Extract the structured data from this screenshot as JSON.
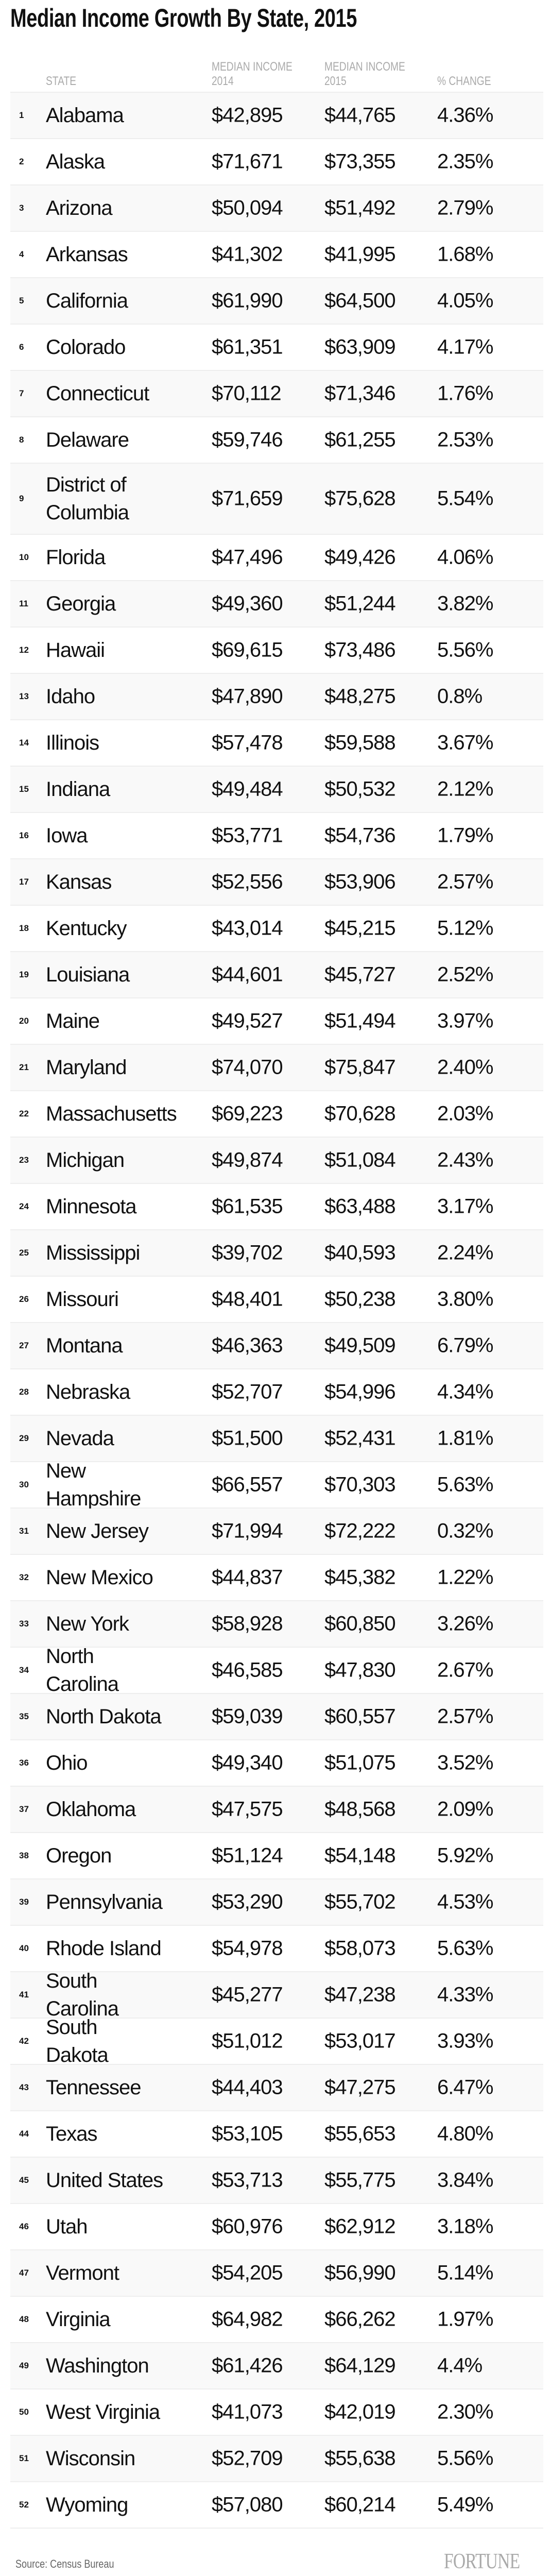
{
  "title": "Median Income Growth By State, 2015",
  "columns": {
    "state": "STATE",
    "income_2014_line1": "MEDIAN INCOME",
    "income_2014_line2": "2014",
    "income_2015_line1": "MEDIAN INCOME",
    "income_2015_line2": "2015",
    "change": "% CHANGE"
  },
  "rows": [
    {
      "rank": "1",
      "state": "Alabama",
      "y2014": "$42,895",
      "y2015": "$44,765",
      "change": "4.36%"
    },
    {
      "rank": "2",
      "state": "Alaska",
      "y2014": "$71,671",
      "y2015": "$73,355",
      "change": "2.35%"
    },
    {
      "rank": "3",
      "state": "Arizona",
      "y2014": "$50,094",
      "y2015": "$51,492",
      "change": "2.79%"
    },
    {
      "rank": "4",
      "state": "Arkansas",
      "y2014": "$41,302",
      "y2015": "$41,995",
      "change": "1.68%"
    },
    {
      "rank": "5",
      "state": "California",
      "y2014": "$61,990",
      "y2015": "$64,500",
      "change": "4.05%"
    },
    {
      "rank": "6",
      "state": "Colorado",
      "y2014": "$61,351",
      "y2015": "$63,909",
      "change": "4.17%"
    },
    {
      "rank": "7",
      "state": "Connecticut",
      "y2014": "$70,112",
      "y2015": "$71,346",
      "change": "1.76%"
    },
    {
      "rank": "8",
      "state": "Delaware",
      "y2014": "$59,746",
      "y2015": "$61,255",
      "change": "2.53%"
    },
    {
      "rank": "9",
      "state": "District of Columbia",
      "y2014": "$71,659",
      "y2015": "$75,628",
      "change": "5.54%"
    },
    {
      "rank": "10",
      "state": "Florida",
      "y2014": "$47,496",
      "y2015": "$49,426",
      "change": "4.06%"
    },
    {
      "rank": "11",
      "state": "Georgia",
      "y2014": "$49,360",
      "y2015": "$51,244",
      "change": "3.82%"
    },
    {
      "rank": "12",
      "state": "Hawaii",
      "y2014": "$69,615",
      "y2015": "$73,486",
      "change": "5.56%"
    },
    {
      "rank": "13",
      "state": "Idaho",
      "y2014": "$47,890",
      "y2015": "$48,275",
      "change": "0.8%"
    },
    {
      "rank": "14",
      "state": "Illinois",
      "y2014": "$57,478",
      "y2015": "$59,588",
      "change": "3.67%"
    },
    {
      "rank": "15",
      "state": "Indiana",
      "y2014": "$49,484",
      "y2015": "$50,532",
      "change": "2.12%"
    },
    {
      "rank": "16",
      "state": "Iowa",
      "y2014": "$53,771",
      "y2015": "$54,736",
      "change": "1.79%"
    },
    {
      "rank": "17",
      "state": "Kansas",
      "y2014": "$52,556",
      "y2015": "$53,906",
      "change": "2.57%"
    },
    {
      "rank": "18",
      "state": "Kentucky",
      "y2014": "$43,014",
      "y2015": "$45,215",
      "change": "5.12%"
    },
    {
      "rank": "19",
      "state": "Louisiana",
      "y2014": "$44,601",
      "y2015": "$45,727",
      "change": "2.52%"
    },
    {
      "rank": "20",
      "state": "Maine",
      "y2014": "$49,527",
      "y2015": "$51,494",
      "change": "3.97%"
    },
    {
      "rank": "21",
      "state": "Maryland",
      "y2014": "$74,070",
      "y2015": "$75,847",
      "change": "2.40%"
    },
    {
      "rank": "22",
      "state": "Massachusetts",
      "y2014": "$69,223",
      "y2015": "$70,628",
      "change": "2.03%"
    },
    {
      "rank": "23",
      "state": "Michigan",
      "y2014": "$49,874",
      "y2015": "$51,084",
      "change": "2.43%"
    },
    {
      "rank": "24",
      "state": "Minnesota",
      "y2014": "$61,535",
      "y2015": "$63,488",
      "change": "3.17%"
    },
    {
      "rank": "25",
      "state": "Mississippi",
      "y2014": "$39,702",
      "y2015": "$40,593",
      "change": "2.24%"
    },
    {
      "rank": "26",
      "state": "Missouri",
      "y2014": "$48,401",
      "y2015": "$50,238",
      "change": "3.80%"
    },
    {
      "rank": "27",
      "state": "Montana",
      "y2014": "$46,363",
      "y2015": "$49,509",
      "change": "6.79%"
    },
    {
      "rank": "28",
      "state": "Nebraska",
      "y2014": "$52,707",
      "y2015": "$54,996",
      "change": "4.34%"
    },
    {
      "rank": "29",
      "state": "Nevada",
      "y2014": "$51,500",
      "y2015": "$52,431",
      "change": "1.81%"
    },
    {
      "rank": "30",
      "state": "New Hampshire",
      "y2014": "$66,557",
      "y2015": "$70,303",
      "change": "5.63%"
    },
    {
      "rank": "31",
      "state": "New Jersey",
      "y2014": "$71,994",
      "y2015": "$72,222",
      "change": "0.32%"
    },
    {
      "rank": "32",
      "state": "New Mexico",
      "y2014": "$44,837",
      "y2015": "$45,382",
      "change": "1.22%"
    },
    {
      "rank": "33",
      "state": "New York",
      "y2014": "$58,928",
      "y2015": "$60,850",
      "change": "3.26%"
    },
    {
      "rank": "34",
      "state": "North Carolina",
      "y2014": "$46,585",
      "y2015": "$47,830",
      "change": "2.67%"
    },
    {
      "rank": "35",
      "state": "North Dakota",
      "y2014": "$59,039",
      "y2015": "$60,557",
      "change": "2.57%"
    },
    {
      "rank": "36",
      "state": "Ohio",
      "y2014": "$49,340",
      "y2015": "$51,075",
      "change": "3.52%"
    },
    {
      "rank": "37",
      "state": "Oklahoma",
      "y2014": "$47,575",
      "y2015": "$48,568",
      "change": "2.09%"
    },
    {
      "rank": "38",
      "state": "Oregon",
      "y2014": "$51,124",
      "y2015": "$54,148",
      "change": "5.92%"
    },
    {
      "rank": "39",
      "state": "Pennsylvania",
      "y2014": "$53,290",
      "y2015": "$55,702",
      "change": "4.53%"
    },
    {
      "rank": "40",
      "state": "Rhode Island",
      "y2014": "$54,978",
      "y2015": "$58,073",
      "change": "5.63%"
    },
    {
      "rank": "41",
      "state": "South Carolina",
      "y2014": "$45,277",
      "y2015": "$47,238",
      "change": "4.33%"
    },
    {
      "rank": "42",
      "state": "South Dakota",
      "y2014": "$51,012",
      "y2015": "$53,017",
      "change": "3.93%"
    },
    {
      "rank": "43",
      "state": "Tennessee",
      "y2014": "$44,403",
      "y2015": "$47,275",
      "change": "6.47%"
    },
    {
      "rank": "44",
      "state": "Texas",
      "y2014": "$53,105",
      "y2015": "$55,653",
      "change": "4.80%"
    },
    {
      "rank": "45",
      "state": "United States",
      "y2014": "$53,713",
      "y2015": "$55,775",
      "change": "3.84%"
    },
    {
      "rank": "46",
      "state": "Utah",
      "y2014": "$60,976",
      "y2015": "$62,912",
      "change": "3.18%"
    },
    {
      "rank": "47",
      "state": "Vermont",
      "y2014": "$54,205",
      "y2015": "$56,990",
      "change": "5.14%"
    },
    {
      "rank": "48",
      "state": "Virginia",
      "y2014": "$64,982",
      "y2015": "$66,262",
      "change": "1.97%"
    },
    {
      "rank": "49",
      "state": "Washington",
      "y2014": "$61,426",
      "y2015": "$64,129",
      "change": "4.4%"
    },
    {
      "rank": "50",
      "state": "West Virginia",
      "y2014": "$41,073",
      "y2015": "$42,019",
      "change": "2.30%"
    },
    {
      "rank": "51",
      "state": "Wisconsin",
      "y2014": "$52,709",
      "y2015": "$55,638",
      "change": "5.56%"
    },
    {
      "rank": "52",
      "state": "Wyoming",
      "y2014": "$57,080",
      "y2015": "$60,214",
      "change": "5.49%"
    }
  ],
  "footer": {
    "source": "Source: Census Bureau",
    "logo": "FORTUNE"
  },
  "colors": {
    "stripe": "#f9f9f9",
    "divider": "#eeeeee",
    "header_text": "#aaaaaa"
  }
}
